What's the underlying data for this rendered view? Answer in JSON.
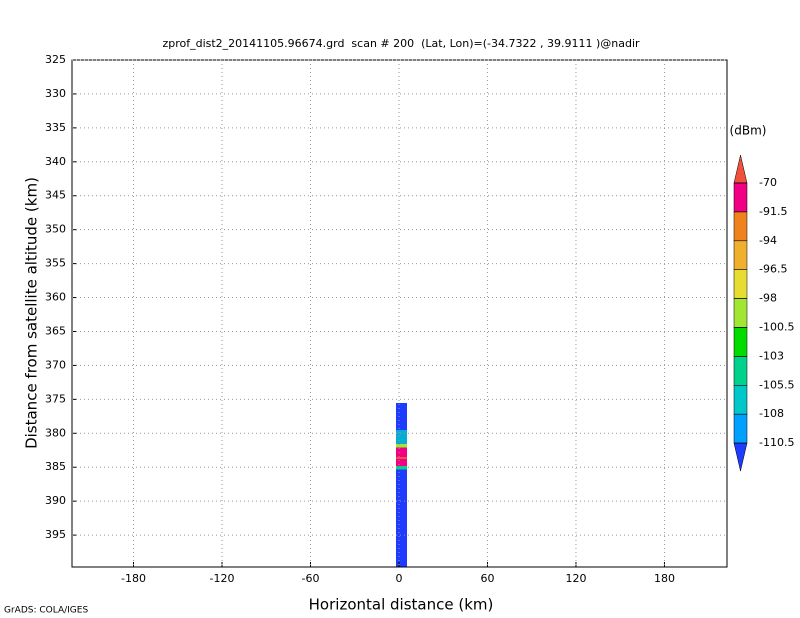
{
  "chart_data": {
    "type": "field",
    "title": "zprof_dist2_20141105.96674.grd  scan # 200  (Lat, Lon)=(-34.7322 , 39.9111 )@nadir",
    "x_label": "Horizontal distance (km)",
    "y_label": "Distance from satellite altitude (km)",
    "xlim": [
      -221.7,
      222.4
    ],
    "ylim": [
      325,
      399.7
    ],
    "xticks": [
      -180,
      -120,
      -60,
      0,
      60,
      120,
      180
    ],
    "yticks": [
      325,
      330,
      335,
      340,
      345,
      350,
      355,
      360,
      365,
      370,
      375,
      380,
      385,
      390,
      395
    ],
    "grid": true,
    "colorbar": {
      "unit": "(dBm)",
      "levels": [
        -70,
        -91.5,
        -94,
        -96.5,
        -98,
        -100.5,
        -103,
        -105.5,
        -108,
        -110.5
      ],
      "colors": [
        "#f0503c",
        "#f00082",
        "#f0821e",
        "#f0af2d",
        "#e6dc32",
        "#a0e632",
        "#00dc00",
        "#00d28c",
        "#00c8c8",
        "#00a0ff",
        "#1e3cff"
      ]
    },
    "footer": "GrADS: COLA/IGES"
  }
}
